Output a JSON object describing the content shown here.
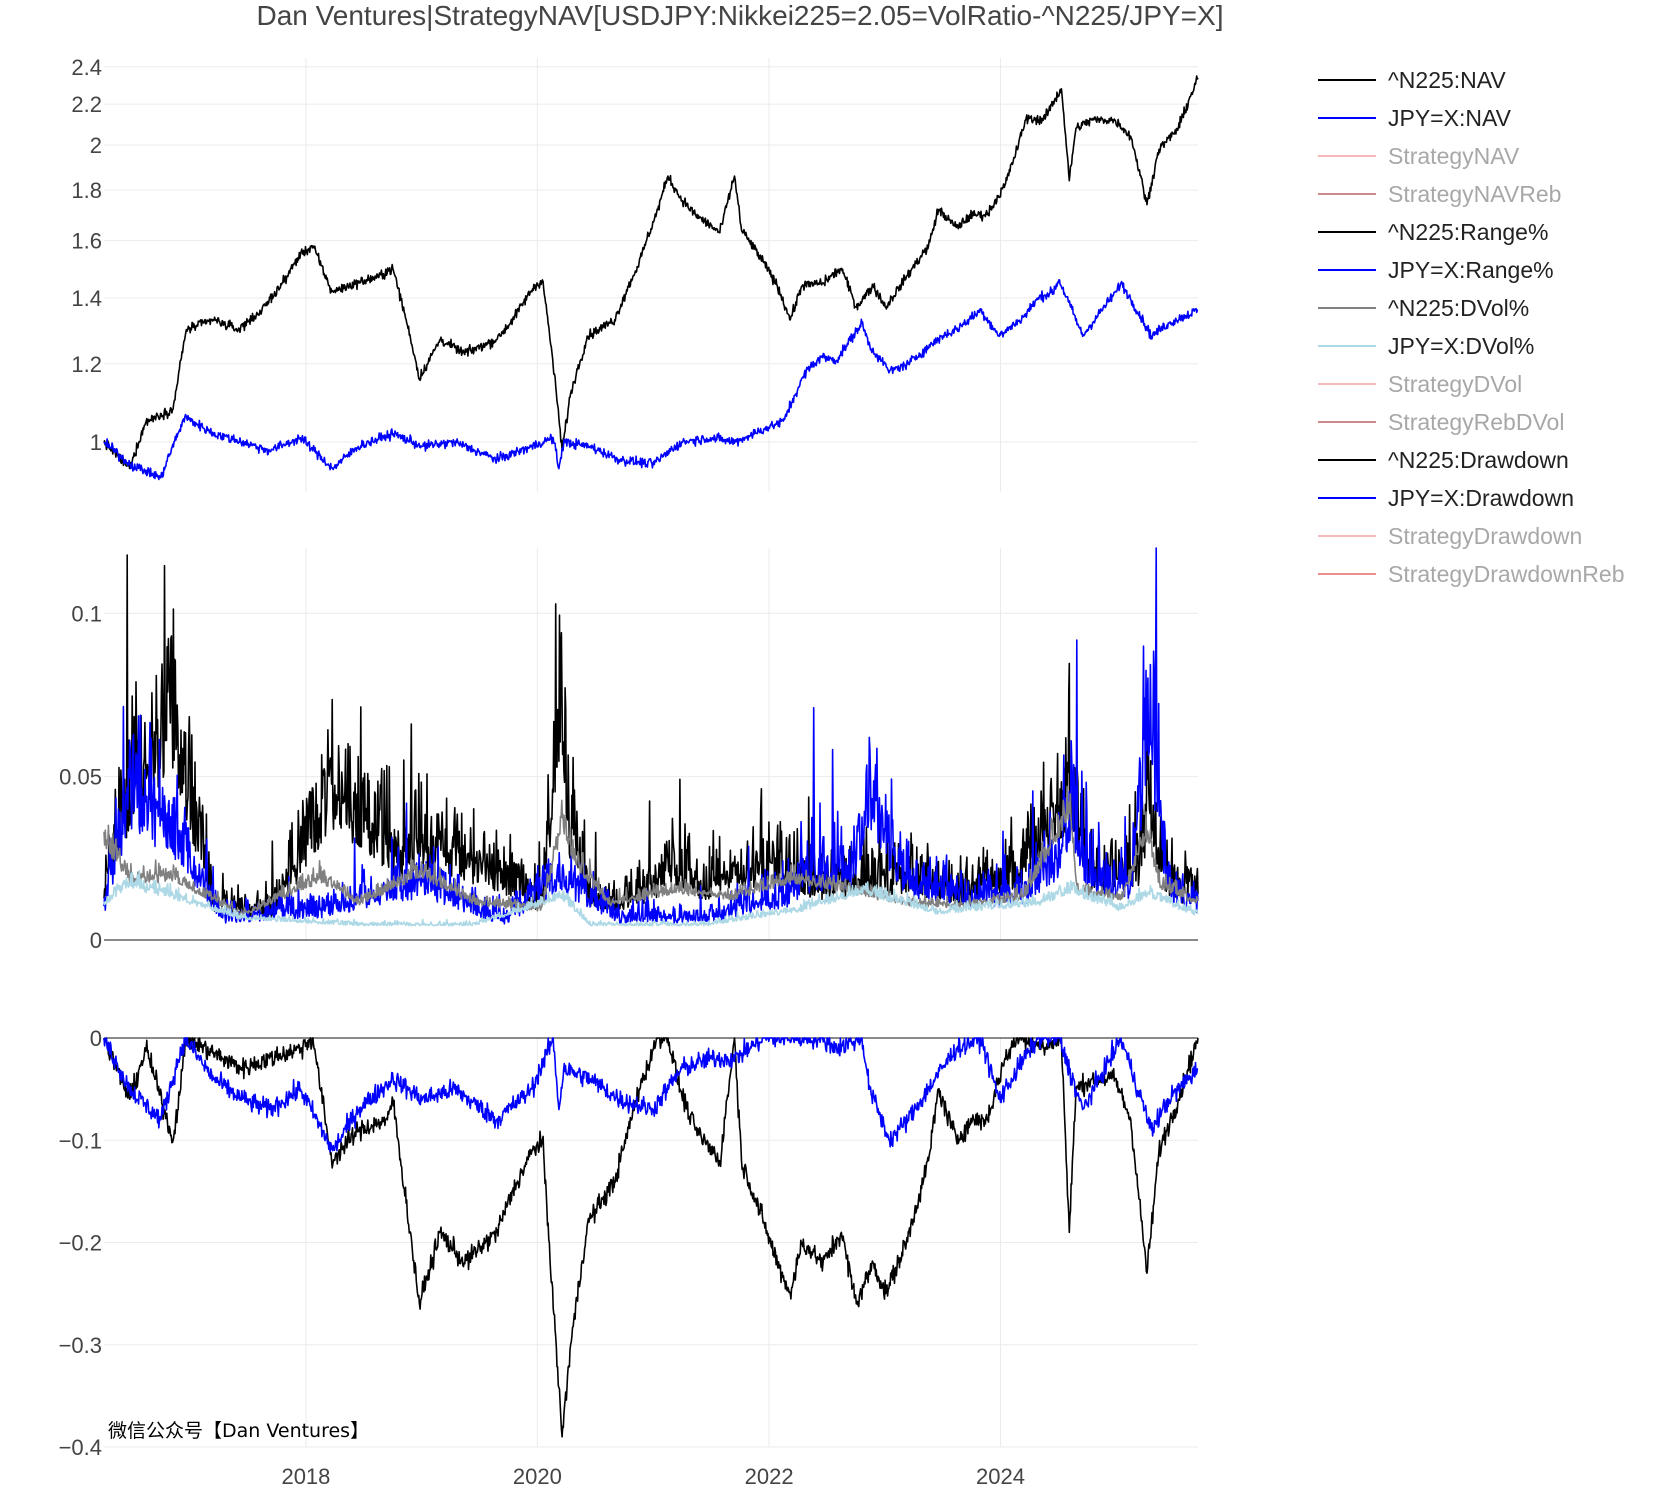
{
  "chart_data": {
    "type": "line",
    "title": "Dan Ventures|StrategyNAV[USDJPY:Nikkei225=2.05=VolRatio-^N225/JPY=X]",
    "x_range": [
      "2016-04-04",
      "2025-09-15"
    ],
    "x_ticks": [
      "2018",
      "2020",
      "2022",
      "2024"
    ],
    "watermark": "微信公众号【Dan Ventures】",
    "legend": [
      {
        "name": "^N225:NAV",
        "color": "#000000",
        "visible": true
      },
      {
        "name": "JPY=X:NAV",
        "color": "#0000ff",
        "visible": true
      },
      {
        "name": "StrategyNAV",
        "color": "#f08080",
        "visible": false
      },
      {
        "name": "StrategyNAVReb",
        "color": "#a52a2a",
        "visible": false
      },
      {
        "name": "^N225:Range%",
        "color": "#000000",
        "visible": true
      },
      {
        "name": "JPY=X:Range%",
        "color": "#0000ff",
        "visible": true
      },
      {
        "name": "^N225:DVol%",
        "color": "#808080",
        "visible": true
      },
      {
        "name": "JPY=X:DVol%",
        "color": "#add8e6",
        "visible": true
      },
      {
        "name": "StrategyDVol",
        "color": "#f08080",
        "visible": false
      },
      {
        "name": "StrategyRebDVol",
        "color": "#a52a2a",
        "visible": false
      },
      {
        "name": "^N225:Drawdown",
        "color": "#000000",
        "visible": true
      },
      {
        "name": "JPY=X:Drawdown",
        "color": "#0000ff",
        "visible": true
      },
      {
        "name": "StrategyDrawdown",
        "color": "#f08080",
        "visible": false
      },
      {
        "name": "StrategyDrawdownReb",
        "color": "#e03030",
        "visible": false
      }
    ],
    "panels": [
      {
        "id": "nav",
        "y_scale": "log",
        "y_range": [
          0.89,
          2.45
        ],
        "y_ticks": [
          "2.4",
          "2.2",
          "2",
          "1.8",
          "1.6",
          "1.4",
          "1.2",
          "1"
        ],
        "series": [
          {
            "name": "^N225:NAV",
            "color": "#000000",
            "x": [
              "2016-04-04",
              "2016-06-24",
              "2016-08-15",
              "2016-11-08",
              "2016-12-20",
              "2017-03-15",
              "2017-06-01",
              "2017-08-15",
              "2017-10-20",
              "2017-12-15",
              "2018-01-23",
              "2018-03-23",
              "2018-06-15",
              "2018-08-15",
              "2018-10-02",
              "2018-12-25",
              "2019-03-01",
              "2019-05-15",
              "2019-08-26",
              "2019-10-15",
              "2019-12-17",
              "2020-01-17",
              "2020-03-19",
              "2020-04-15",
              "2020-06-08",
              "2020-09-01",
              "2020-11-17",
              "2021-01-15",
              "2021-02-16",
              "2021-03-26",
              "2021-05-13",
              "2021-07-30",
              "2021-09-14",
              "2021-10-06",
              "2021-12-15",
              "2022-01-27",
              "2022-03-09",
              "2022-04-15",
              "2022-06-20",
              "2022-08-17",
              "2022-10-03",
              "2022-11-25",
              "2023-01-04",
              "2023-03-10",
              "2023-05-19",
              "2023-06-19",
              "2023-08-15",
              "2023-10-04",
              "2023-11-20",
              "2024-01-15",
              "2024-02-22",
              "2024-03-22",
              "2024-05-15",
              "2024-07-11",
              "2024-08-05",
              "2024-08-26",
              "2024-10-15",
              "2024-12-27",
              "2025-02-15",
              "2025-04-07",
              "2025-05-15",
              "2025-07-15",
              "2025-09-15"
            ],
            "y": [
              1.0,
              0.94,
              1.05,
              1.08,
              1.3,
              1.33,
              1.3,
              1.36,
              1.45,
              1.55,
              1.58,
              1.42,
              1.45,
              1.47,
              1.5,
              1.16,
              1.27,
              1.23,
              1.27,
              1.33,
              1.43,
              1.46,
              0.98,
              1.12,
              1.28,
              1.33,
              1.52,
              1.72,
              1.86,
              1.77,
              1.7,
              1.63,
              1.86,
              1.64,
              1.52,
              1.44,
              1.33,
              1.44,
              1.45,
              1.5,
              1.37,
              1.44,
              1.37,
              1.47,
              1.58,
              1.72,
              1.65,
              1.7,
              1.7,
              1.82,
              1.98,
              2.13,
              2.12,
              2.28,
              1.84,
              2.08,
              2.12,
              2.12,
              2.04,
              1.74,
              1.98,
              2.08,
              2.34
            ]
          },
          {
            "name": "JPY=X:NAV",
            "color": "#0000ff",
            "x": [
              "2016-04-04",
              "2016-06-24",
              "2016-09-30",
              "2016-12-15",
              "2017-03-15",
              "2017-06-15",
              "2017-09-08",
              "2017-12-15",
              "2018-03-26",
              "2018-06-15",
              "2018-10-03",
              "2019-01-03",
              "2019-04-15",
              "2019-08-26",
              "2019-12-15",
              "2020-02-20",
              "2020-03-09",
              "2020-03-24",
              "2020-06-15",
              "2020-09-15",
              "2020-12-31",
              "2021-03-31",
              "2021-06-30",
              "2021-09-15",
              "2021-12-15",
              "2022-02-15",
              "2022-04-28",
              "2022-06-15",
              "2022-08-02",
              "2022-10-21",
              "2022-11-15",
              "2023-01-16",
              "2023-03-15",
              "2023-06-30",
              "2023-08-15",
              "2023-10-31",
              "2023-12-28",
              "2024-03-15",
              "2024-04-29",
              "2024-06-15",
              "2024-07-03",
              "2024-09-16",
              "2024-12-30",
              "2025-01-15",
              "2025-04-21",
              "2025-06-15",
              "2025-09-15"
            ],
            "y": [
              1.0,
              0.95,
              0.92,
              1.06,
              1.02,
              1.0,
              0.98,
              1.01,
              0.94,
              0.99,
              1.02,
              0.99,
              1.0,
              0.96,
              0.99,
              1.01,
              0.94,
              1.0,
              0.99,
              0.96,
              0.95,
              1.0,
              1.01,
              1.0,
              1.03,
              1.05,
              1.18,
              1.22,
              1.21,
              1.32,
              1.25,
              1.18,
              1.2,
              1.28,
              1.3,
              1.36,
              1.28,
              1.34,
              1.4,
              1.42,
              1.46,
              1.28,
              1.42,
              1.45,
              1.28,
              1.32,
              1.36
            ]
          }
        ]
      },
      {
        "id": "volatility",
        "y_scale": "linear",
        "y_range": [
          0,
          0.12
        ],
        "y_ticks": [
          0,
          0.05,
          0.1
        ],
        "y_ticklabels": [
          "0",
          "0.05",
          "0.1"
        ],
        "series": [
          {
            "name": "^N225:Range%",
            "color": "#000000",
            "x": [
              "2016-04-04",
              "2016-06-24",
              "2016-11-09",
              "2017-03-15",
              "2017-09-15",
              "2018-02-06",
              "2018-03-23",
              "2018-10-25",
              "2018-12-25",
              "2019-08-05",
              "2020-01-15",
              "2020-03-13",
              "2020-04-15",
              "2020-06-15",
              "2020-09-15",
              "2021-01-15",
              "2021-02-26",
              "2021-06-15",
              "2021-10-15",
              "2022-03-09",
              "2022-06-15",
              "2022-10-15",
              "2023-03-15",
              "2023-09-15",
              "2024-03-15",
              "2024-08-02",
              "2024-08-05",
              "2024-08-06",
              "2024-10-15",
              "2025-03-15",
              "2025-04-04",
              "2025-04-07",
              "2025-04-09",
              "2025-06-15",
              "2025-09-15"
            ],
            "y": [
              0.018,
              0.052,
              0.076,
              0.012,
              0.01,
              0.04,
              0.052,
              0.028,
              0.034,
              0.024,
              0.012,
              0.079,
              0.035,
              0.015,
              0.012,
              0.02,
              0.027,
              0.018,
              0.025,
              0.024,
              0.018,
              0.02,
              0.022,
              0.016,
              0.024,
              0.05,
              0.115,
              0.05,
              0.022,
              0.025,
              0.04,
              0.072,
              0.045,
              0.02,
              0.014
            ]
          },
          {
            "name": "JPY=X:Range%",
            "color": "#0000ff",
            "x": [
              "2016-04-04",
              "2016-06-24",
              "2016-11-09",
              "2017-04-15",
              "2018-02-06",
              "2019-01-03",
              "2019-09-15",
              "2020-03-12",
              "2020-09-15",
              "2021-06-15",
              "2022-03-15",
              "2022-04-28",
              "2022-09-22",
              "2022-10-21",
              "2022-11-11",
              "2023-03-15",
              "2023-09-15",
              "2024-03-15",
              "2024-07-11",
              "2024-08-05",
              "2024-10-15",
              "2025-02-15",
              "2025-04-10",
              "2025-06-15",
              "2025-09-15"
            ],
            "y": [
              0.012,
              0.052,
              0.038,
              0.008,
              0.01,
              0.02,
              0.007,
              0.022,
              0.008,
              0.008,
              0.016,
              0.022,
              0.025,
              0.035,
              0.046,
              0.02,
              0.015,
              0.016,
              0.03,
              0.044,
              0.02,
              0.018,
              0.074,
              0.018,
              0.012
            ]
          },
          {
            "name": "^N225:DVol%",
            "color": "#808080",
            "x": [
              "2016-04-04",
              "2016-06-24",
              "2016-11-15",
              "2017-06-15",
              "2018-02-15",
              "2018-06-15",
              "2018-12-28",
              "2019-06-15",
              "2020-01-15",
              "2020-03-20",
              "2020-04-30",
              "2020-08-15",
              "2021-03-15",
              "2021-09-15",
              "2022-03-15",
              "2022-09-15",
              "2023-03-15",
              "2023-09-15",
              "2024-03-15",
              "2024-08-08",
              "2024-08-30",
              "2025-01-15",
              "2025-04-10",
              "2025-05-15",
              "2025-09-15"
            ],
            "y": [
              0.032,
              0.02,
              0.02,
              0.008,
              0.02,
              0.012,
              0.022,
              0.012,
              0.01,
              0.038,
              0.025,
              0.012,
              0.016,
              0.014,
              0.02,
              0.016,
              0.012,
              0.011,
              0.014,
              0.043,
              0.016,
              0.013,
              0.035,
              0.018,
              0.012
            ]
          },
          {
            "name": "JPY=X:DVol%",
            "color": "#add8e6",
            "x": [
              "2016-04-04",
              "2016-06-24",
              "2016-11-15",
              "2017-06-15",
              "2018-06-15",
              "2019-06-15",
              "2020-03-20",
              "2020-06-15",
              "2021-06-15",
              "2022-04-15",
              "2022-10-21",
              "2023-06-15",
              "2024-04-29",
              "2024-08-08",
              "2025-01-15",
              "2025-04-10",
              "2025-09-15"
            ],
            "y": [
              0.012,
              0.018,
              0.014,
              0.007,
              0.005,
              0.005,
              0.014,
              0.005,
              0.005,
              0.01,
              0.016,
              0.009,
              0.012,
              0.016,
              0.01,
              0.015,
              0.008
            ]
          }
        ]
      },
      {
        "id": "drawdown",
        "y_scale": "linear",
        "y_range": [
          -0.4,
          0
        ],
        "y_ticks": [
          0,
          -0.1,
          -0.2,
          -0.3,
          -0.4
        ],
        "y_ticklabels": [
          "0",
          "−0.1",
          "−0.2",
          "−0.3",
          "−0.4"
        ],
        "series": [
          {
            "name": "^N225:Drawdown",
            "color": "#000000",
            "x": [
              "2016-04-04",
              "2016-06-24",
              "2016-08-15",
              "2016-11-08",
              "2016-12-20",
              "2017-04-14",
              "2017-06-15",
              "2017-09-08",
              "2017-12-15",
              "2018-01-23",
              "2018-03-23",
              "2018-06-15",
              "2018-09-15",
              "2018-10-02",
              "2018-12-25",
              "2019-03-01",
              "2019-05-15",
              "2019-08-26",
              "2019-10-15",
              "2019-12-17",
              "2020-01-17",
              "2020-03-19",
              "2020-04-15",
              "2020-06-08",
              "2020-09-01",
              "2020-11-17",
              "2021-01-15",
              "2021-02-16",
              "2021-03-26",
              "2021-05-13",
              "2021-07-30",
              "2021-09-14",
              "2021-10-06",
              "2021-12-15",
              "2022-01-27",
              "2022-03-09",
              "2022-04-15",
              "2022-06-20",
              "2022-08-17",
              "2022-10-03",
              "2022-11-25",
              "2023-01-04",
              "2023-03-10",
              "2023-05-19",
              "2023-06-19",
              "2023-08-15",
              "2023-10-04",
              "2023-11-20",
              "2024-01-15",
              "2024-02-22",
              "2024-03-22",
              "2024-05-15",
              "2024-07-11",
              "2024-08-05",
              "2024-08-26",
              "2024-10-15",
              "2024-12-27",
              "2025-02-15",
              "2025-04-07",
              "2025-05-15",
              "2025-07-15",
              "2025-09-15"
            ],
            "y": [
              0.0,
              -0.06,
              -0.01,
              -0.1,
              0.0,
              -0.02,
              -0.03,
              -0.02,
              -0.01,
              0.0,
              -0.12,
              -0.09,
              -0.08,
              -0.06,
              -0.26,
              -0.19,
              -0.22,
              -0.19,
              -0.15,
              -0.11,
              -0.1,
              -0.39,
              -0.3,
              -0.18,
              -0.14,
              -0.05,
              0.0,
              0.0,
              -0.05,
              -0.09,
              -0.12,
              0.0,
              -0.12,
              -0.18,
              -0.22,
              -0.25,
              -0.2,
              -0.22,
              -0.19,
              -0.26,
              -0.22,
              -0.25,
              -0.2,
              -0.12,
              -0.05,
              -0.1,
              -0.08,
              -0.08,
              -0.02,
              0.0,
              0.0,
              -0.01,
              0.0,
              -0.19,
              -0.05,
              -0.04,
              -0.04,
              -0.08,
              -0.23,
              -0.11,
              -0.06,
              0.0
            ]
          },
          {
            "name": "JPY=X:Drawdown",
            "color": "#0000ff",
            "x": [
              "2016-04-04",
              "2016-06-24",
              "2016-09-30",
              "2016-12-15",
              "2017-03-15",
              "2017-06-15",
              "2017-09-08",
              "2017-12-15",
              "2018-03-26",
              "2018-06-15",
              "2018-10-03",
              "2019-01-03",
              "2019-04-15",
              "2019-08-26",
              "2019-12-15",
              "2020-02-20",
              "2020-03-09",
              "2020-03-24",
              "2020-06-15",
              "2020-09-15",
              "2020-12-31",
              "2021-03-31",
              "2021-06-30",
              "2021-09-15",
              "2021-12-15",
              "2022-02-15",
              "2022-04-28",
              "2022-06-15",
              "2022-08-02",
              "2022-10-21",
              "2022-11-15",
              "2023-01-16",
              "2023-03-15",
              "2023-06-30",
              "2023-08-15",
              "2023-10-31",
              "2023-12-28",
              "2024-03-15",
              "2024-04-29",
              "2024-06-15",
              "2024-07-03",
              "2024-09-16",
              "2024-12-30",
              "2025-01-15",
              "2025-04-21",
              "2025-06-15",
              "2025-09-15"
            ],
            "y": [
              0.0,
              -0.05,
              -0.08,
              0.0,
              -0.04,
              -0.06,
              -0.07,
              -0.05,
              -0.11,
              -0.07,
              -0.04,
              -0.06,
              -0.05,
              -0.08,
              -0.05,
              0.0,
              -0.07,
              -0.03,
              -0.04,
              -0.06,
              -0.07,
              -0.03,
              -0.02,
              -0.02,
              0.0,
              0.0,
              0.0,
              0.0,
              -0.01,
              0.0,
              -0.05,
              -0.1,
              -0.08,
              -0.03,
              -0.01,
              0.0,
              -0.06,
              -0.02,
              0.0,
              0.0,
              0.0,
              -0.07,
              -0.01,
              0.0,
              -0.09,
              -0.06,
              -0.03
            ]
          }
        ]
      }
    ]
  }
}
